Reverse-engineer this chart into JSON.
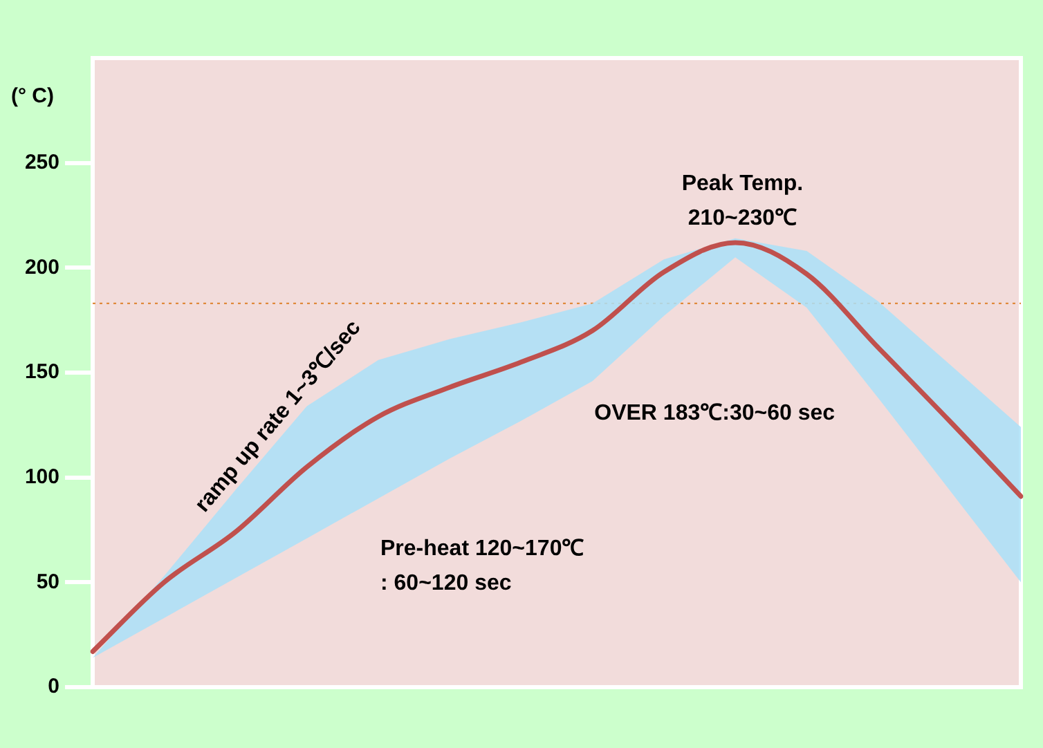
{
  "chart_data": {
    "type": "line",
    "ylabel": "(° C)",
    "categories": [
      null,
      null,
      null,
      null,
      null,
      null,
      null,
      null,
      null,
      null,
      null,
      null,
      null,
      null
    ],
    "series": [
      {
        "color": "#c0504d",
        "values": [
          17,
          50,
          74,
          105,
          129,
          143,
          155,
          170,
          198,
          212,
          197,
          162,
          127,
          91
        ],
        "lower": [
          14,
          33,
          52,
          71,
          90,
          109,
          127,
          146,
          177,
          205,
          181,
          138,
          94,
          50
        ],
        "upper": [
          14,
          53,
          94,
          134,
          156,
          166,
          174,
          183,
          204,
          214,
          208,
          184,
          154,
          124
        ]
      }
    ],
    "ylim": [
      0,
      300
    ],
    "yticks": [
      0,
      50,
      100,
      150,
      200,
      250
    ],
    "ref_lines": [
      {
        "axis": "y",
        "value": 183,
        "color": "#e08a3c",
        "line_style": "dotted"
      }
    ],
    "annotations": [
      "Peak Temp.",
      "210~230℃",
      "ramp up rate 1~3℃/sec",
      "OVER 183℃:30~60 sec",
      "Pre-heat 120~170℃",
      ": 60~120 sec"
    ],
    "tick_labels": "y",
    "legend": false,
    "marker": "none",
    "line_style": "solid"
  }
}
